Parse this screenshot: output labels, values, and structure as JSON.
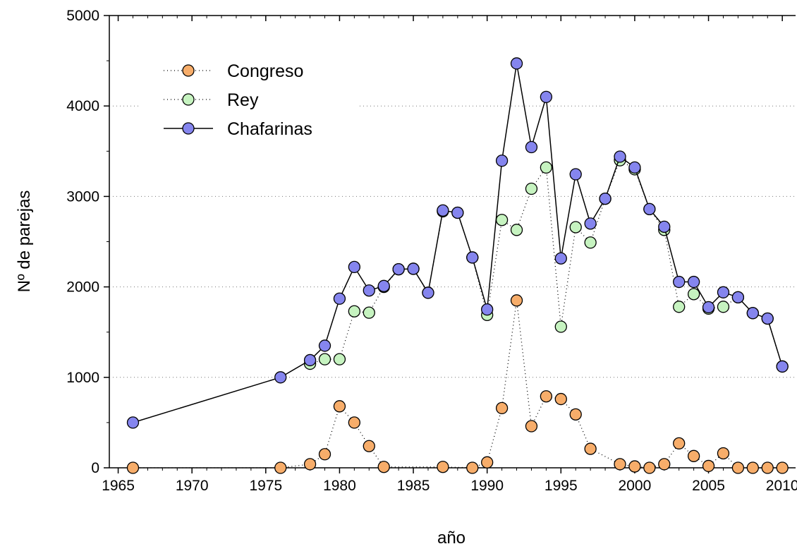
{
  "chart_data": {
    "type": "line",
    "x_label": "año",
    "y_label": "Nº de parejas",
    "xlim": [
      1964.4,
      2010.9
    ],
    "ylim": [
      0,
      5000
    ],
    "xticks": [
      1965,
      1970,
      1975,
      1980,
      1985,
      1990,
      1995,
      2000,
      2005,
      2010
    ],
    "yticks": [
      0,
      1000,
      2000,
      3000,
      4000,
      5000
    ],
    "grid": true,
    "legend": "upper left",
    "series": [
      {
        "name": "Congreso",
        "color": "#f7ad6a",
        "line_style": "dotted",
        "x": [
          1966,
          1976,
          1978,
          1979,
          1980,
          1981,
          1982,
          1983,
          1987,
          1989,
          1990,
          1991,
          1992,
          1993,
          1994,
          1995,
          1996,
          1997,
          1999,
          2000,
          2001,
          2002,
          2003,
          2004,
          2005,
          2006,
          2007,
          2008,
          2009,
          2010
        ],
        "values": [
          0,
          0,
          40,
          150,
          680,
          500,
          240,
          10,
          10,
          0,
          60,
          660,
          1850,
          460,
          790,
          760,
          590,
          210,
          40,
          15,
          0,
          40,
          270,
          130,
          20,
          160,
          0,
          0,
          0,
          0
        ]
      },
      {
        "name": "Rey",
        "color": "#c6f3c0",
        "line_style": "dotted",
        "x": [
          1978,
          1979,
          1980,
          1981,
          1982,
          1983,
          1984,
          1985,
          1986,
          1987,
          1988,
          1989,
          1990,
          1991,
          1992,
          1993,
          1994,
          1995,
          1996,
          1997,
          1998,
          1999,
          2000,
          2001,
          2002,
          2003,
          2004,
          2005,
          2006,
          2007,
          2008,
          2009,
          2010
        ],
        "values": [
          1150,
          1200,
          1200,
          1730,
          1715,
          2000,
          2195,
          2200,
          1935,
          2835,
          2820,
          2325,
          1690,
          2740,
          2630,
          3085,
          3320,
          1560,
          2660,
          2490,
          2975,
          3400,
          3300,
          2860,
          2630,
          1780,
          1920,
          1760,
          1780,
          1885,
          1710,
          1650,
          1120
        ]
      },
      {
        "name": "Chafarinas",
        "color": "#8585ee",
        "line_style": "solid",
        "x": [
          1966,
          1976,
          1978,
          1979,
          1980,
          1981,
          1982,
          1983,
          1984,
          1985,
          1986,
          1987,
          1988,
          1989,
          1990,
          1991,
          1992,
          1993,
          1994,
          1995,
          1996,
          1997,
          1998,
          1999,
          2000,
          2001,
          2002,
          2003,
          2004,
          2005,
          2006,
          2007,
          2008,
          2009,
          2010
        ],
        "values": [
          500,
          1000,
          1190,
          1350,
          1870,
          2220,
          1960,
          2010,
          2195,
          2200,
          1935,
          2845,
          2820,
          2325,
          1750,
          3395,
          4470,
          3545,
          4100,
          2315,
          3245,
          2700,
          2975,
          3440,
          3320,
          2860,
          2665,
          2055,
          2055,
          1775,
          1940,
          1885,
          1710,
          1650,
          1120
        ]
      }
    ]
  }
}
